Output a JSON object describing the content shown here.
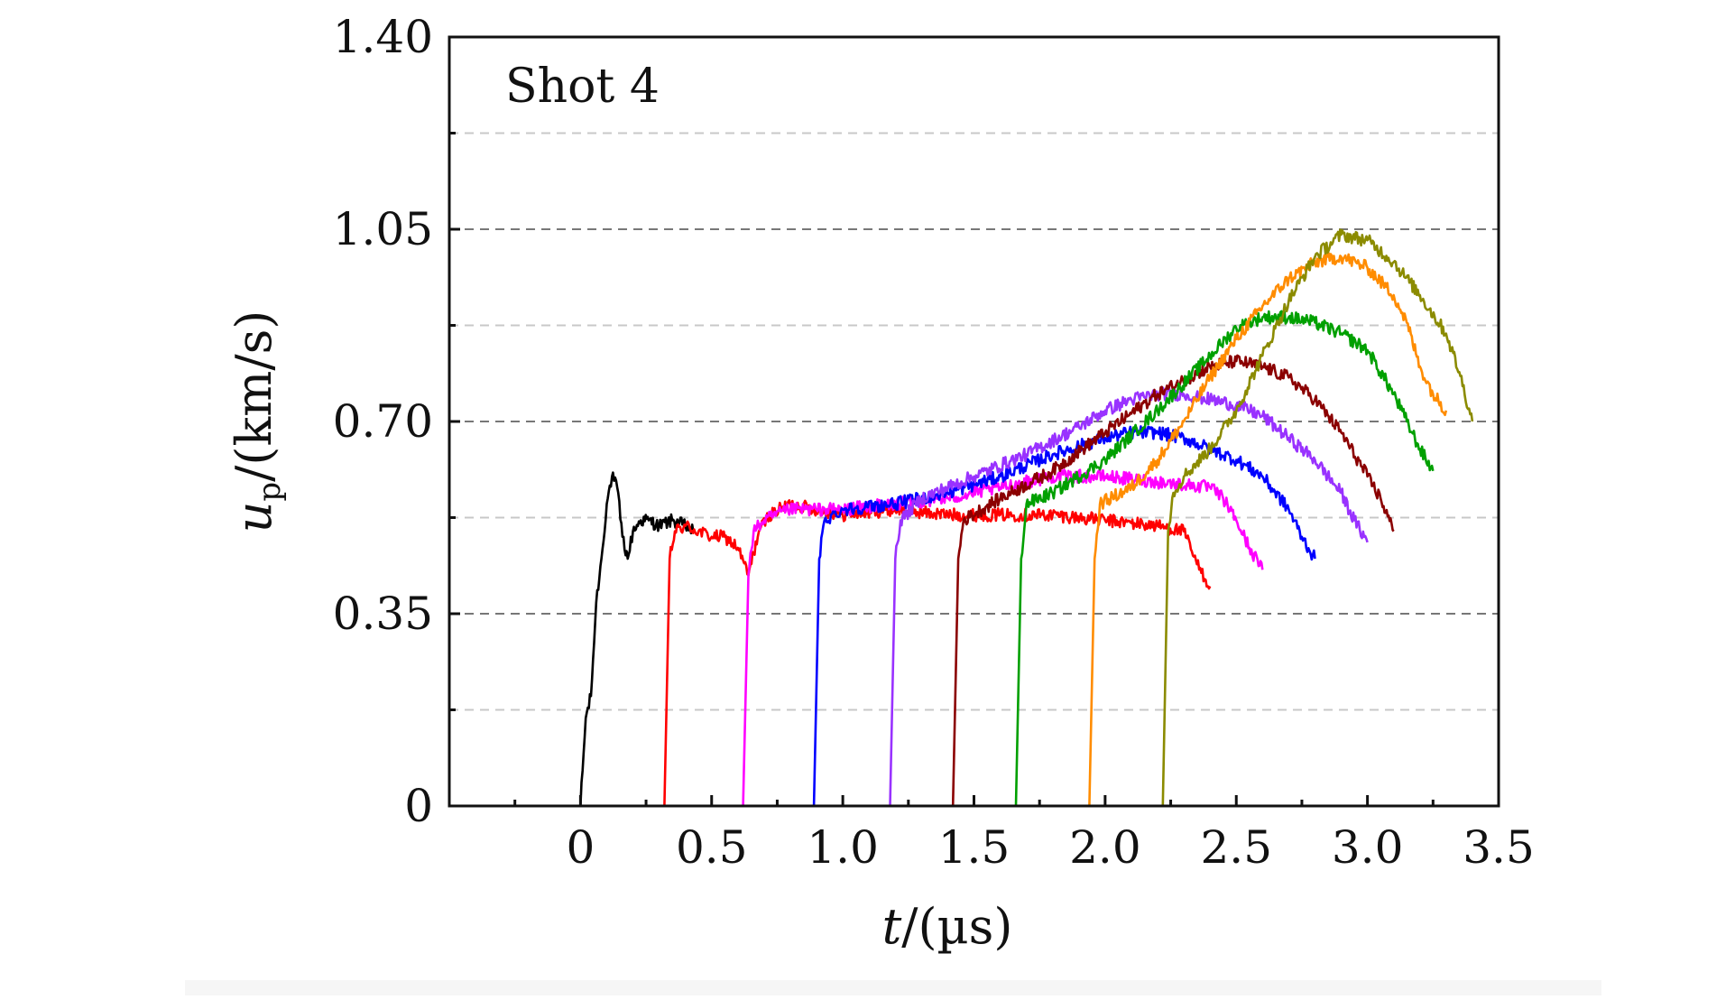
{
  "chart_data": {
    "type": "line",
    "annotation": "Shot 4",
    "xlabel": {
      "italic": "t",
      "rest": "/(µs)"
    },
    "ylabel": {
      "italic": "u",
      "sub": "p",
      "rest": "/(km/s)"
    },
    "xlim": [
      -0.5,
      3.5
    ],
    "ylim": [
      0,
      1.4
    ],
    "xticks": [
      0,
      0.5,
      1.0,
      1.5,
      2.0,
      2.5,
      3.0,
      3.5
    ],
    "xtick_labels": [
      "0",
      "0.5",
      "1.0",
      "1.5",
      "2.0",
      "2.5",
      "3.0",
      "3.5"
    ],
    "xminor": [
      -0.25,
      0.25,
      0.75,
      1.25,
      1.75,
      2.25,
      2.75,
      3.25
    ],
    "yticks": [
      0,
      0.35,
      0.7,
      1.05,
      1.4
    ],
    "ytick_labels": [
      "0",
      "0.35",
      "0.70",
      "1.05",
      "1.40"
    ],
    "yminor": [
      0.175,
      0.525,
      0.875,
      1.225
    ],
    "grid": {
      "major": true,
      "minor": true,
      "style": "dashed"
    },
    "noise": 0.012,
    "series": [
      {
        "color": "#000000",
        "x": [
          0.0,
          0.02,
          0.04,
          0.06,
          0.08,
          0.1,
          0.12,
          0.14,
          0.16,
          0.18,
          0.2,
          0.23,
          0.26,
          0.3,
          0.35,
          0.4,
          0.43
        ],
        "y": [
          0.0,
          0.16,
          0.2,
          0.37,
          0.45,
          0.55,
          0.6,
          0.58,
          0.49,
          0.45,
          0.5,
          0.52,
          0.52,
          0.51,
          0.52,
          0.51,
          0.5
        ]
      },
      {
        "color": "#ff0000",
        "x": [
          0.32,
          0.34,
          0.36,
          0.4,
          0.45,
          0.5,
          0.55,
          0.6,
          0.64,
          0.68,
          0.72,
          0.8,
          0.9,
          1.0,
          1.2,
          1.4,
          1.6,
          1.8,
          2.0,
          2.2,
          2.3,
          2.35,
          2.4
        ],
        "y": [
          0.0,
          0.45,
          0.5,
          0.51,
          0.5,
          0.49,
          0.49,
          0.47,
          0.42,
          0.5,
          0.53,
          0.55,
          0.54,
          0.53,
          0.54,
          0.53,
          0.53,
          0.53,
          0.52,
          0.51,
          0.5,
          0.44,
          0.4
        ]
      },
      {
        "color": "#ff00ff",
        "x": [
          0.62,
          0.64,
          0.66,
          0.7,
          0.8,
          0.9,
          1.0,
          1.2,
          1.4,
          1.6,
          1.8,
          2.0,
          2.2,
          2.4,
          2.45,
          2.5,
          2.55,
          2.6
        ],
        "y": [
          0.0,
          0.42,
          0.5,
          0.52,
          0.54,
          0.54,
          0.54,
          0.55,
          0.56,
          0.58,
          0.6,
          0.6,
          0.59,
          0.58,
          0.56,
          0.52,
          0.47,
          0.43
        ]
      },
      {
        "color": "#0000ff",
        "x": [
          0.89,
          0.91,
          0.93,
          1.0,
          1.2,
          1.4,
          1.6,
          1.8,
          2.0,
          2.1,
          2.2,
          2.3,
          2.4,
          2.5,
          2.6,
          2.7,
          2.75,
          2.8
        ],
        "y": [
          0.0,
          0.45,
          0.52,
          0.54,
          0.55,
          0.57,
          0.6,
          0.64,
          0.67,
          0.68,
          0.68,
          0.67,
          0.65,
          0.63,
          0.6,
          0.54,
          0.49,
          0.45
        ]
      },
      {
        "color": "#9932ff",
        "x": [
          1.18,
          1.2,
          1.22,
          1.3,
          1.5,
          1.7,
          1.9,
          2.0,
          2.1,
          2.2,
          2.3,
          2.4,
          2.5,
          2.6,
          2.7,
          2.8,
          2.9,
          2.95,
          3.0
        ],
        "y": [
          0.0,
          0.45,
          0.52,
          0.56,
          0.6,
          0.64,
          0.69,
          0.72,
          0.74,
          0.75,
          0.75,
          0.74,
          0.73,
          0.71,
          0.67,
          0.63,
          0.57,
          0.52,
          0.48
        ]
      },
      {
        "color": "#8b0000",
        "x": [
          1.42,
          1.44,
          1.46,
          1.6,
          1.8,
          2.0,
          2.2,
          2.4,
          2.5,
          2.6,
          2.7,
          2.8,
          2.9,
          3.0,
          3.05,
          3.1
        ],
        "y": [
          0.0,
          0.45,
          0.52,
          0.56,
          0.61,
          0.68,
          0.75,
          0.8,
          0.81,
          0.8,
          0.78,
          0.74,
          0.68,
          0.6,
          0.56,
          0.5
        ]
      },
      {
        "color": "#00a000",
        "x": [
          1.66,
          1.68,
          1.7,
          1.8,
          2.0,
          2.2,
          2.4,
          2.5,
          2.6,
          2.7,
          2.8,
          2.9,
          3.0,
          3.1,
          3.15,
          3.2,
          3.25
        ],
        "y": [
          0.0,
          0.45,
          0.55,
          0.57,
          0.63,
          0.72,
          0.82,
          0.87,
          0.89,
          0.89,
          0.88,
          0.86,
          0.83,
          0.75,
          0.7,
          0.65,
          0.61
        ]
      },
      {
        "color": "#ff8c00",
        "x": [
          1.94,
          1.96,
          1.98,
          2.1,
          2.2,
          2.3,
          2.4,
          2.5,
          2.6,
          2.7,
          2.8,
          2.9,
          3.0,
          3.1,
          3.15,
          3.2,
          3.25,
          3.3
        ],
        "y": [
          0.0,
          0.45,
          0.55,
          0.58,
          0.63,
          0.7,
          0.78,
          0.85,
          0.91,
          0.96,
          0.99,
          1.0,
          0.98,
          0.93,
          0.88,
          0.8,
          0.75,
          0.72
        ]
      },
      {
        "color": "#8b8b00",
        "x": [
          2.22,
          2.24,
          2.26,
          2.3,
          2.4,
          2.5,
          2.6,
          2.7,
          2.8,
          2.9,
          3.0,
          3.1,
          3.2,
          3.3,
          3.35,
          3.4
        ],
        "y": [
          0.0,
          0.5,
          0.57,
          0.6,
          0.65,
          0.72,
          0.82,
          0.92,
          1.0,
          1.04,
          1.03,
          0.99,
          0.93,
          0.86,
          0.79,
          0.7
        ]
      }
    ]
  }
}
